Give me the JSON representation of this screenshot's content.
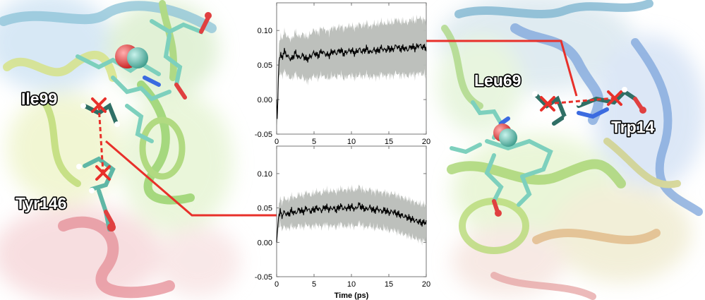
{
  "residues": {
    "left_a": "Ile99",
    "left_b": "Tyr146",
    "right_a": "Leu69",
    "right_b": "Trp14"
  },
  "colors": {
    "connector": "#e8302a",
    "band": "#b9bdb8",
    "line": "#000000"
  },
  "chart_data": [
    {
      "type": "line",
      "title": "",
      "xlabel": "",
      "ylabel": "",
      "xlim": [
        0,
        20
      ],
      "ylim": [
        -0.05,
        0.14
      ],
      "xticks": [
        "0",
        "5",
        "10",
        "15",
        "20"
      ],
      "yticks": [
        "-0.05",
        "0.00",
        "0.05",
        "0.10"
      ],
      "series": [
        {
          "x": [
            0,
            0.1,
            0.2,
            0.3,
            0.5,
            0.7,
            1.0,
            1.5,
            2.0,
            2.5,
            3.0,
            3.5,
            4.0,
            4.5,
            5.0,
            5.5,
            6.0,
            6.5,
            7.0,
            7.5,
            8.0,
            8.5,
            9.0,
            9.5,
            10.0,
            10.5,
            11.0,
            11.5,
            12.0,
            12.5,
            13.0,
            13.5,
            14.0,
            14.5,
            15.0,
            15.5,
            16.0,
            16.5,
            17.0,
            17.5,
            18.0,
            18.5,
            19.0,
            19.5,
            20.0
          ],
          "y": [
            0.0,
            -0.035,
            0.02,
            0.055,
            0.065,
            0.06,
            0.07,
            0.062,
            0.058,
            0.068,
            0.06,
            0.064,
            0.058,
            0.062,
            0.068,
            0.063,
            0.07,
            0.066,
            0.064,
            0.07,
            0.067,
            0.072,
            0.066,
            0.07,
            0.071,
            0.067,
            0.073,
            0.069,
            0.074,
            0.068,
            0.072,
            0.07,
            0.075,
            0.071,
            0.074,
            0.072,
            0.078,
            0.073,
            0.075,
            0.072,
            0.077,
            0.074,
            0.079,
            0.076,
            0.075
          ],
          "band": [
            0.0,
            0.012,
            0.02,
            0.025,
            0.028,
            0.028,
            0.03,
            0.03,
            0.03,
            0.032,
            0.032,
            0.033,
            0.034,
            0.034,
            0.035,
            0.035,
            0.036,
            0.036,
            0.036,
            0.037,
            0.037,
            0.037,
            0.038,
            0.038,
            0.038,
            0.038,
            0.039,
            0.039,
            0.039,
            0.039,
            0.04,
            0.04,
            0.04,
            0.04,
            0.04,
            0.041,
            0.041,
            0.041,
            0.041,
            0.041,
            0.042,
            0.042,
            0.042,
            0.042,
            0.042
          ]
        }
      ]
    },
    {
      "type": "line",
      "title": "",
      "xlabel": "Time (ps)",
      "ylabel": "",
      "xlim": [
        0,
        20
      ],
      "ylim": [
        -0.05,
        0.14
      ],
      "xticks": [
        "0",
        "5",
        "10",
        "15",
        "20"
      ],
      "yticks": [
        "-0.05",
        "0.00",
        "0.05",
        "0.10"
      ],
      "series": [
        {
          "x": [
            0,
            0.1,
            0.2,
            0.3,
            0.5,
            0.7,
            1.0,
            1.5,
            2.0,
            2.5,
            3.0,
            3.5,
            4.0,
            4.5,
            5.0,
            5.5,
            6.0,
            6.5,
            7.0,
            7.5,
            8.0,
            8.5,
            9.0,
            9.5,
            10.0,
            10.5,
            11.0,
            11.5,
            12.0,
            12.5,
            13.0,
            13.5,
            14.0,
            14.5,
            15.0,
            15.5,
            16.0,
            16.5,
            17.0,
            17.5,
            18.0,
            18.5,
            19.0,
            19.5,
            20.0
          ],
          "y": [
            0.0,
            0.015,
            0.03,
            0.04,
            0.045,
            0.038,
            0.044,
            0.04,
            0.046,
            0.042,
            0.048,
            0.044,
            0.05,
            0.045,
            0.048,
            0.05,
            0.046,
            0.052,
            0.048,
            0.05,
            0.047,
            0.053,
            0.049,
            0.05,
            0.052,
            0.048,
            0.055,
            0.05,
            0.048,
            0.051,
            0.046,
            0.049,
            0.045,
            0.047,
            0.043,
            0.045,
            0.042,
            0.04,
            0.038,
            0.036,
            0.034,
            0.032,
            0.03,
            0.028,
            0.03
          ],
          "band": [
            0.0,
            0.01,
            0.014,
            0.018,
            0.02,
            0.02,
            0.022,
            0.022,
            0.023,
            0.023,
            0.024,
            0.024,
            0.025,
            0.025,
            0.025,
            0.026,
            0.026,
            0.026,
            0.027,
            0.027,
            0.027,
            0.027,
            0.028,
            0.028,
            0.028,
            0.028,
            0.028,
            0.028,
            0.028,
            0.028,
            0.028,
            0.028,
            0.028,
            0.028,
            0.028,
            0.028,
            0.028,
            0.028,
            0.028,
            0.028,
            0.028,
            0.028,
            0.028,
            0.028,
            0.028
          ]
        }
      ]
    }
  ]
}
